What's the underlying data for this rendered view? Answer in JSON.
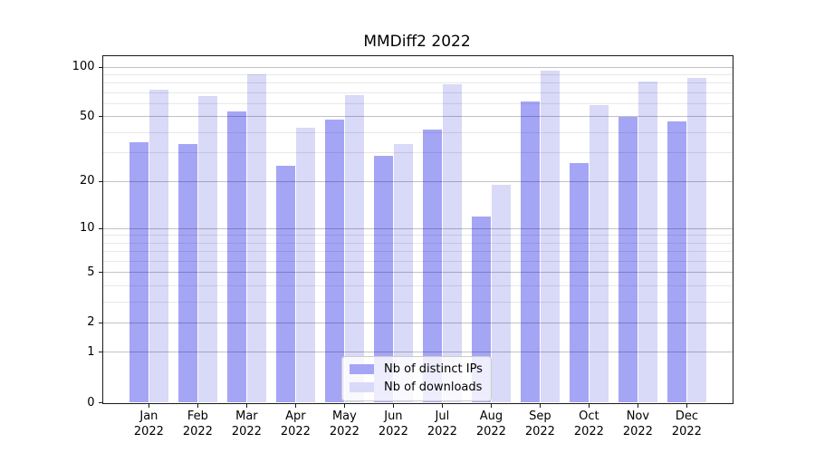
{
  "title": "MMDiff2 2022",
  "colors": {
    "ips_bar": "#a5a5f6",
    "downloads_bar": "#d9d9f8",
    "grid_major": "rgba(0,0,0,0.24)",
    "grid_minor": "rgba(0,0,0,0.09)",
    "axis": "#1a1a1a",
    "legend_border": "#cccccc"
  },
  "chart_data": {
    "type": "bar",
    "title": "MMDiff2 2022",
    "categories": [
      "Jan",
      "Feb",
      "Mar",
      "Apr",
      "May",
      "Jun",
      "Jul",
      "Aug",
      "Sep",
      "Oct",
      "Nov",
      "Dec"
    ],
    "year": "2022",
    "series": [
      {
        "name": "Nb of distinct IPs",
        "values": [
          35,
          34,
          54,
          25,
          48,
          29,
          42,
          12,
          62,
          26,
          50,
          47
        ]
      },
      {
        "name": "Nb of downloads",
        "values": [
          73,
          67,
          90,
          43,
          68,
          34,
          79,
          19,
          95,
          59,
          82,
          86
        ]
      }
    ],
    "xlabel": "",
    "ylabel": "",
    "yscale": "log1p",
    "ylim": [
      0,
      117
    ],
    "yticks": [
      0,
      1,
      2,
      5,
      10,
      20,
      50,
      100
    ],
    "yticks_minor": [
      3,
      4,
      6,
      7,
      8,
      9,
      30,
      40,
      60,
      70,
      80,
      90
    ],
    "grid": "on",
    "legend_position": "bottom-center"
  }
}
